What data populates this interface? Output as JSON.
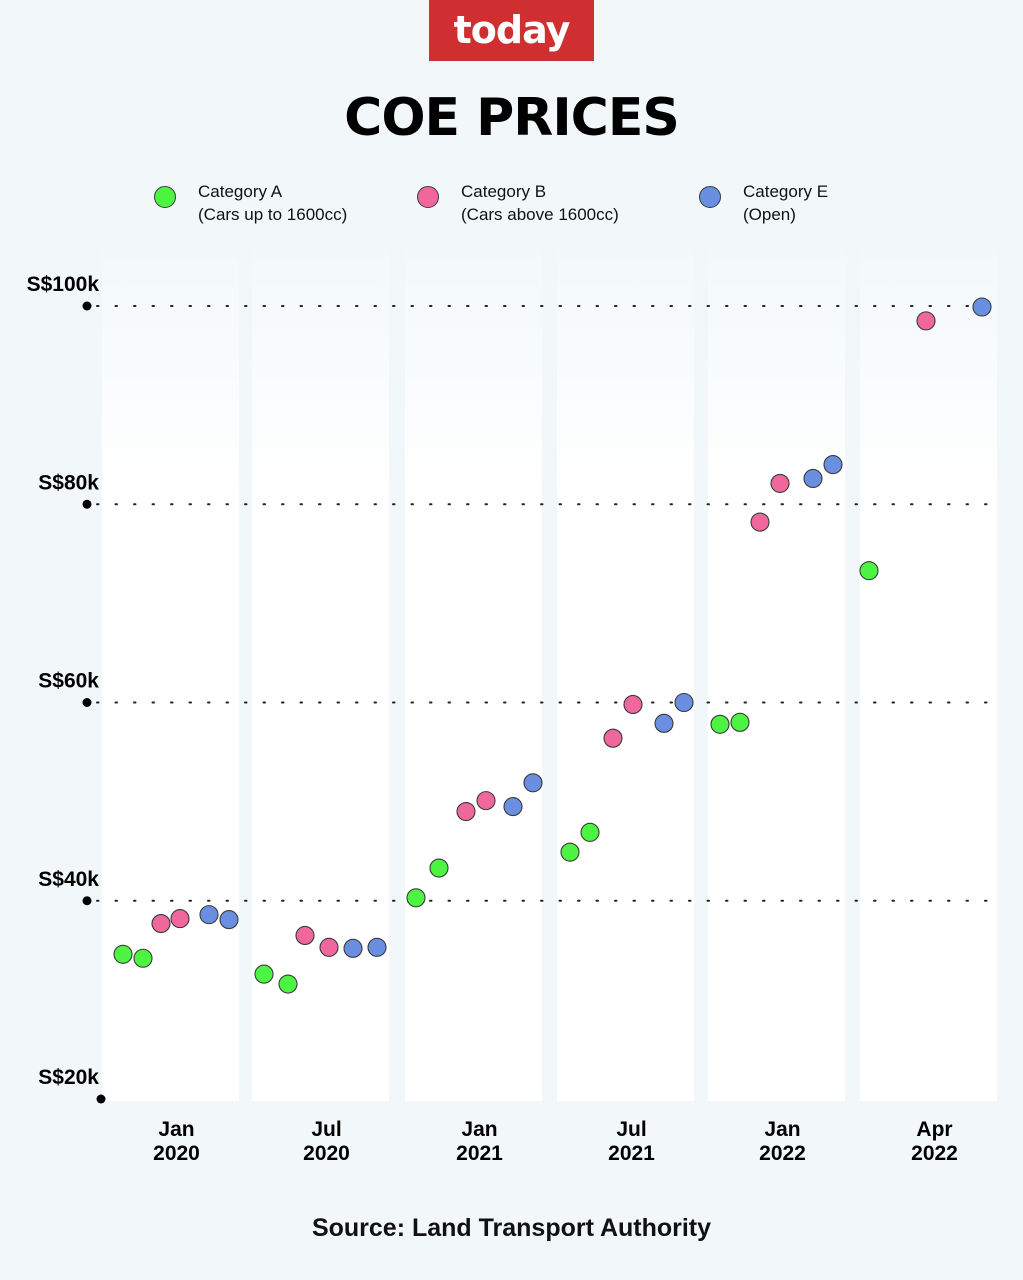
{
  "brand": {
    "logo_text": "today",
    "logo_color": "#cf2f30"
  },
  "title": "COE PRICES",
  "source": "Source: Land Transport Authority",
  "legend": [
    {
      "line1": "Category A",
      "line2": "(Cars up to 1600cc)",
      "color": "#4df542"
    },
    {
      "line1": "Category B",
      "line2": "(Cars above 1600cc)",
      "color": "#f0679e"
    },
    {
      "line1": "Category E",
      "line2": "(Open)",
      "color": "#6a8fe0"
    }
  ],
  "chart_data": {
    "type": "scatter",
    "title": "COE PRICES",
    "y_unit": "S$",
    "ylim": [
      20000,
      100000
    ],
    "y_ticks": [
      {
        "value": 100000,
        "label": "S$100k"
      },
      {
        "value": 80000,
        "label": "S$80k"
      },
      {
        "value": 60000,
        "label": "S$60k"
      },
      {
        "value": 40000,
        "label": "S$40k"
      },
      {
        "value": 20000,
        "label": "S$20k"
      }
    ],
    "periods": [
      {
        "month": "Jan",
        "year": "2020"
      },
      {
        "month": "Jul",
        "year": "2020"
      },
      {
        "month": "Jan",
        "year": "2021"
      },
      {
        "month": "Jul",
        "year": "2021"
      },
      {
        "month": "Jan",
        "year": "2022"
      },
      {
        "month": "Apr",
        "year": "2022"
      }
    ],
    "grid": "dotted horizontal",
    "legend_position": "top",
    "series": [
      {
        "name": "Category A",
        "color": "#4df542",
        "points": [
          {
            "period": 0,
            "slot": 0,
            "value": 34600
          },
          {
            "period": 0,
            "slot": 1,
            "value": 34200
          },
          {
            "period": 1,
            "slot": 0,
            "value": 32600
          },
          {
            "period": 1,
            "slot": 1,
            "value": 31600
          },
          {
            "period": 2,
            "slot": 0,
            "value": 40300
          },
          {
            "period": 2,
            "slot": 1,
            "value": 43300
          },
          {
            "period": 3,
            "slot": 0,
            "value": 44900
          },
          {
            "period": 3,
            "slot": 1,
            "value": 46900
          },
          {
            "period": 4,
            "slot": 0,
            "value": 57800
          },
          {
            "period": 4,
            "slot": 1,
            "value": 58000
          },
          {
            "period": 5,
            "slot": 0,
            "value": 73300
          }
        ]
      },
      {
        "name": "Category B",
        "color": "#f0679e",
        "points": [
          {
            "period": 0,
            "slot": 2,
            "value": 37700
          },
          {
            "period": 0,
            "slot": 3,
            "value": 38200
          },
          {
            "period": 1,
            "slot": 2,
            "value": 36500
          },
          {
            "period": 1,
            "slot": 3,
            "value": 35300
          },
          {
            "period": 2,
            "slot": 2,
            "value": 49000
          },
          {
            "period": 2,
            "slot": 3,
            "value": 50100
          },
          {
            "period": 3,
            "slot": 2,
            "value": 56400
          },
          {
            "period": 3,
            "slot": 3,
            "value": 59800
          },
          {
            "period": 4,
            "slot": 2,
            "value": 78200
          },
          {
            "period": 4,
            "slot": 3,
            "value": 82100
          },
          {
            "period": 5,
            "slot": 2,
            "value": 98500
          }
        ]
      },
      {
        "name": "Category E",
        "color": "#6a8fe0",
        "points": [
          {
            "period": 0,
            "slot": 4,
            "value": 38600
          },
          {
            "period": 0,
            "slot": 5,
            "value": 38100
          },
          {
            "period": 1,
            "slot": 4,
            "value": 35200
          },
          {
            "period": 1,
            "slot": 5,
            "value": 35300
          },
          {
            "period": 2,
            "slot": 4,
            "value": 49500
          },
          {
            "period": 2,
            "slot": 5,
            "value": 51900
          },
          {
            "period": 3,
            "slot": 4,
            "value": 57900
          },
          {
            "period": 3,
            "slot": 5,
            "value": 60000
          },
          {
            "period": 4,
            "slot": 4,
            "value": 82600
          },
          {
            "period": 4,
            "slot": 5,
            "value": 84000
          },
          {
            "period": 5,
            "slot": 5,
            "value": 99900
          }
        ]
      }
    ]
  }
}
